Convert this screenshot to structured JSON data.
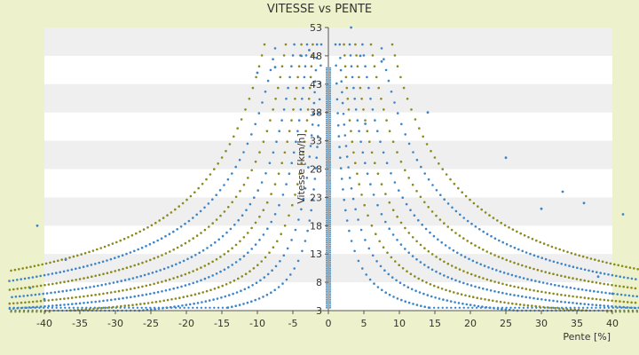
{
  "chart_data": {
    "type": "scatter",
    "title": "VITESSE vs PENTE",
    "xlabel": "Pente [%]",
    "ylabel": "Vitesse [km/h]",
    "xlim": [
      -40,
      40
    ],
    "ylim": [
      3,
      53
    ],
    "x_ticks": [
      -40,
      -35,
      -30,
      -25,
      -20,
      -15,
      -10,
      -5,
      0,
      5,
      10,
      15,
      20,
      25,
      30,
      35,
      40
    ],
    "y_ticks": [
      3,
      8,
      13,
      18,
      23,
      28,
      33,
      38,
      43,
      48,
      53
    ],
    "grid": "horizontal alternating bands",
    "colors": {
      "blue": "#3d85c6",
      "olive": "#8a8a1e",
      "band": "#efefef",
      "background": "#eef2cc"
    },
    "series": [
      {
        "color": "blue",
        "marker": "dot",
        "k": 50,
        "y_min": 3.5,
        "x_min": 1.0
      },
      {
        "color": "blue",
        "marker": "dot",
        "k": 80,
        "y_min": 3.0,
        "x_min": 1.6
      },
      {
        "color": "olive",
        "marker": "dot",
        "k": 110,
        "y_min": 2.8,
        "x_min": 2.2
      },
      {
        "color": "blue",
        "marker": "dot",
        "k": 150,
        "y_min": 2.6,
        "x_min": 3.0
      },
      {
        "color": "olive",
        "marker": "dot",
        "k": 190,
        "y_min": 2.5,
        "x_min": 3.8
      },
      {
        "color": "blue",
        "marker": "dot",
        "k": 240,
        "y_min": 2.4,
        "x_min": 4.8
      },
      {
        "color": "olive",
        "marker": "dot",
        "k": 300,
        "y_min": 2.3,
        "x_min": 6.0
      },
      {
        "color": "blue",
        "marker": "dot",
        "k": 370,
        "y_min": 2.2,
        "x_min": 7.5
      },
      {
        "color": "olive",
        "marker": "dot",
        "k": 450,
        "y_min": 2.1,
        "x_min": 9.0
      }
    ],
    "scattered_points": [
      {
        "x": -10,
        "y": 45
      },
      {
        "x": -7.5,
        "y": 46
      },
      {
        "x": -2.7,
        "y": 49
      },
      {
        "x": -3.8,
        "y": 48
      },
      {
        "x": 3.2,
        "y": 53
      },
      {
        "x": 4.5,
        "y": 48
      },
      {
        "x": 7.5,
        "y": 47
      },
      {
        "x": 5.2,
        "y": 36
      },
      {
        "x": 14,
        "y": 38
      },
      {
        "x": 25,
        "y": 30
      },
      {
        "x": 33,
        "y": 24
      },
      {
        "x": 41.5,
        "y": 20
      },
      {
        "x": -37,
        "y": 12
      },
      {
        "x": -41,
        "y": 18
      },
      {
        "x": 36,
        "y": 22
      },
      {
        "x": 30,
        "y": 21
      },
      {
        "x": 38,
        "y": 9
      },
      {
        "x": 40,
        "y": 6
      },
      {
        "x": -40,
        "y": 5
      },
      {
        "x": -42,
        "y": 7
      }
    ]
  }
}
